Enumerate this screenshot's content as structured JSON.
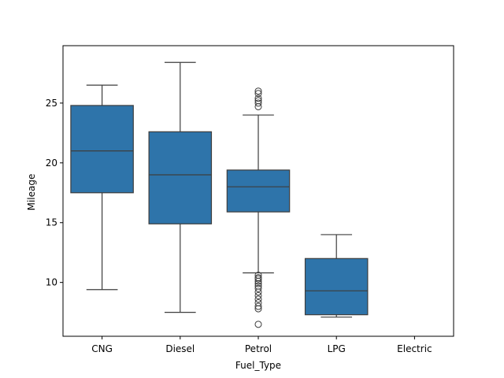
{
  "chart_data": {
    "type": "box",
    "title": "",
    "xlabel": "Fuel_Type",
    "ylabel": "Mileage",
    "ylim": [
      5.5,
      29.8
    ],
    "yticks": [
      10,
      15,
      20,
      25
    ],
    "categories": [
      "CNG",
      "Diesel",
      "Petrol",
      "LPG",
      "Electric"
    ],
    "box_color": "#2e74aa",
    "line_color": "#3d3d3d",
    "boxes": [
      {
        "category": "CNG",
        "whisker_low": 9.4,
        "q1": 17.5,
        "median": 21.0,
        "q3": 24.8,
        "whisker_high": 26.5,
        "outliers": []
      },
      {
        "category": "Diesel",
        "whisker_low": 7.5,
        "q1": 14.9,
        "median": 19.0,
        "q3": 22.6,
        "whisker_high": 28.4,
        "outliers": []
      },
      {
        "category": "Petrol",
        "whisker_low": 10.8,
        "q1": 15.9,
        "median": 18.0,
        "q3": 19.4,
        "whisker_high": 24.0,
        "outliers": [
          26.0,
          25.8,
          25.4,
          25.2,
          25.0,
          24.7,
          10.6,
          10.4,
          10.3,
          10.1,
          9.9,
          9.7,
          9.5,
          9.2,
          8.9,
          8.6,
          8.3,
          8.0,
          7.8,
          6.5
        ]
      },
      {
        "category": "LPG",
        "whisker_low": 7.1,
        "q1": 7.3,
        "median": 9.3,
        "q3": 12.0,
        "whisker_high": 14.0,
        "outliers": []
      },
      {
        "category": "Electric",
        "whisker_low": null,
        "q1": null,
        "median": null,
        "q3": null,
        "whisker_high": null,
        "outliers": []
      }
    ]
  }
}
